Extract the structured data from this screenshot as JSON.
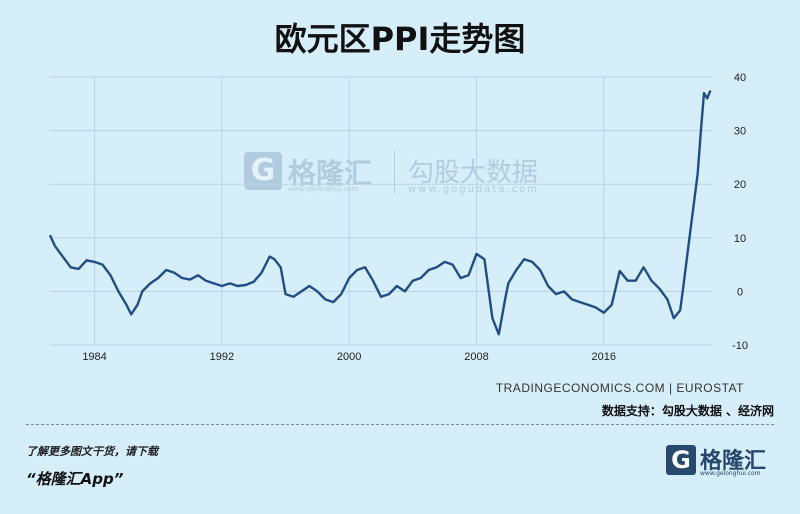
{
  "chart_data": {
    "type": "line",
    "title": "欧元区PPI走势图",
    "xlabel": "",
    "ylabel": "",
    "x_ticks": [
      "1984",
      "1992",
      "2000",
      "2008",
      "2016"
    ],
    "y_ticks": [
      40,
      30,
      20,
      10,
      0,
      -10
    ],
    "ylim": [
      -10,
      40
    ],
    "xlim": [
      1981.2,
      2022.8
    ],
    "grid": true,
    "y_axis_position": "right",
    "line_color": "#1f4e86",
    "series": [
      {
        "x": [
          1981.2,
          1981.5,
          1982.0,
          1982.5,
          1983.0,
          1983.5,
          1984.0,
          1984.5,
          1985.0,
          1985.5,
          1986.0,
          1986.3,
          1986.7,
          1987.0,
          1987.5,
          1988.0,
          1988.5,
          1989.0,
          1989.5,
          1990.0,
          1990.5,
          1991.0,
          1991.5,
          1992.0,
          1992.5,
          1993.0,
          1993.5,
          1994.0,
          1994.5,
          1995.0,
          1995.3,
          1995.7,
          1996.0,
          1996.5,
          1997.0,
          1997.5,
          1998.0,
          1998.5,
          1999.0,
          1999.5,
          2000.0,
          2000.5,
          2001.0,
          2001.5,
          2002.0,
          2002.5,
          2003.0,
          2003.5,
          2004.0,
          2004.5,
          2005.0,
          2005.5,
          2006.0,
          2006.5,
          2007.0,
          2007.5,
          2008.0,
          2008.5,
          2009.0,
          2009.4,
          2009.8,
          2010.0,
          2010.5,
          2011.0,
          2011.5,
          2012.0,
          2012.5,
          2013.0,
          2013.5,
          2014.0,
          2014.5,
          2015.0,
          2015.5,
          2016.0,
          2016.5,
          2017.0,
          2017.5,
          2018.0,
          2018.5,
          2019.0,
          2019.5,
          2020.0,
          2020.4,
          2020.8,
          2021.0,
          2021.3,
          2021.6,
          2021.9,
          2022.1,
          2022.3,
          2022.5,
          2022.7
        ],
        "values": [
          10.5,
          8.5,
          6.5,
          4.5,
          4.2,
          5.8,
          5.5,
          5.0,
          3.0,
          0.0,
          -2.5,
          -4.3,
          -2.5,
          0.0,
          1.5,
          2.5,
          4.0,
          3.5,
          2.5,
          2.2,
          3.0,
          2.0,
          1.5,
          1.0,
          1.5,
          1.0,
          1.2,
          1.8,
          3.5,
          6.5,
          6.0,
          4.5,
          -0.5,
          -1.0,
          0.0,
          1.0,
          0.0,
          -1.5,
          -2.0,
          -0.5,
          2.5,
          4.0,
          4.5,
          2.0,
          -1.0,
          -0.5,
          1.0,
          0.0,
          2.0,
          2.5,
          4.0,
          4.5,
          5.5,
          5.0,
          2.5,
          3.0,
          7.0,
          6.0,
          -5.0,
          -8.0,
          -1.5,
          1.5,
          4.0,
          6.0,
          5.5,
          4.0,
          1.0,
          -0.5,
          0.0,
          -1.5,
          -2.0,
          -2.5,
          -3.0,
          -4.0,
          -2.5,
          3.8,
          2.0,
          2.0,
          4.5,
          2.0,
          0.5,
          -1.5,
          -5.0,
          -3.5,
          1.0,
          8.0,
          15.0,
          22.0,
          30.0,
          37.0,
          36.0,
          37.5
        ]
      }
    ]
  },
  "source_text": "TRADINGECONOMICS.COM | EUROSTAT",
  "data_support": "数据支持：勾股大数据 、经济网",
  "footer": {
    "promo": "了解更多图文干货，请下载",
    "app_name": "“格隆汇App”"
  },
  "brand": {
    "name": "格隆汇",
    "mark": "G",
    "url": "www.gelonghui.com"
  },
  "watermark": {
    "left_name": "格隆汇",
    "left_url": "www.gelonghui.com",
    "right_name": "勾股大数据",
    "right_url": "www.gogudata.com"
  }
}
